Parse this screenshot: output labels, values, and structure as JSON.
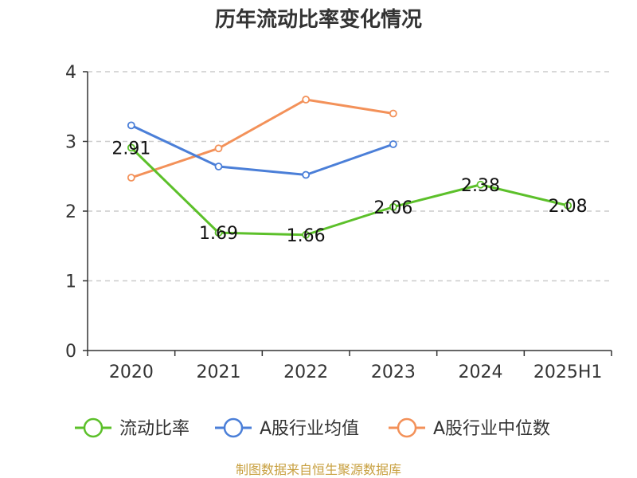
{
  "chart_data": {
    "type": "line",
    "title": "历年流动比率变化情况",
    "categories": [
      "2020",
      "2021",
      "2022",
      "2023",
      "2024",
      "2025H1"
    ],
    "ylim": [
      0,
      4
    ],
    "yticks": [
      0,
      1,
      2,
      3,
      4
    ],
    "grid": true,
    "legend_position": "bottom",
    "series": [
      {
        "name": "流动比率",
        "color": "#5cc02a",
        "values": [
          2.91,
          1.69,
          1.66,
          2.06,
          2.38,
          2.08
        ],
        "labels": [
          "2.91",
          "1.69",
          "1.66",
          "2.06",
          "2.38",
          "2.08"
        ]
      },
      {
        "name": "A股行业均值",
        "color": "#4b7fd8",
        "values": [
          3.23,
          2.64,
          2.52,
          2.96,
          null,
          null
        ]
      },
      {
        "name": "A股行业中位数",
        "color": "#f39159",
        "values": [
          2.48,
          2.9,
          3.6,
          3.4,
          null,
          null
        ]
      }
    ]
  },
  "source_text": "制图数据来自恒生聚源数据库"
}
